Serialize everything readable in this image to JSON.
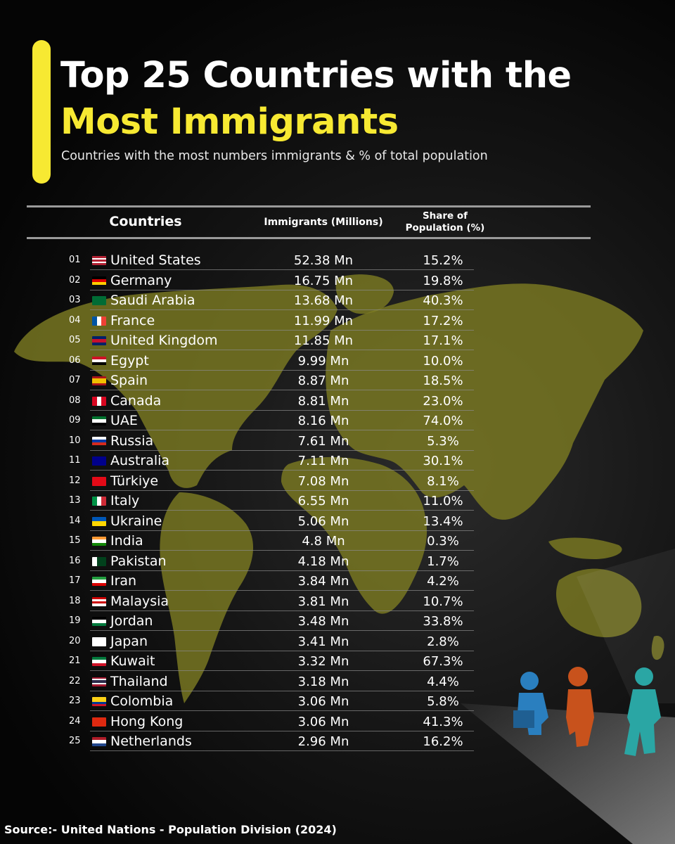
{
  "header": {
    "title_line1": "Top 25 Countries with the",
    "title_line2": "Most Immigrants",
    "subtitle": "Countries with the most numbers immigrants & % of total population"
  },
  "colors": {
    "accent": "#f7e932",
    "background": "#000000",
    "map": "#7b7a22"
  },
  "chart_data": {
    "type": "table",
    "columns": [
      "Countries",
      "Immigrants (Millions)",
      "Share of Population (%)"
    ],
    "rows": [
      {
        "rank": "01",
        "country": "United States",
        "immigrants": "52.38 Mn",
        "share": "15.2%",
        "flag": [
          "#b22234",
          "#ffffff",
          "#b22234",
          "#ffffff",
          "#b22234"
        ]
      },
      {
        "rank": "02",
        "country": "Germany",
        "immigrants": "16.75 Mn",
        "share": "19.8%",
        "flag": [
          "#000000",
          "#dd0000",
          "#ffce00"
        ]
      },
      {
        "rank": "03",
        "country": "Saudi Arabia",
        "immigrants": "13.68 Mn",
        "share": "40.3%",
        "flag": [
          "#006c35"
        ]
      },
      {
        "rank": "04",
        "country": "France",
        "immigrants": "11.99 Mn",
        "share": "17.2%",
        "flag": [
          "#0055a4",
          "#ffffff",
          "#ef4135"
        ],
        "vertical": true
      },
      {
        "rank": "05",
        "country": "United Kingdom",
        "immigrants": "11.85 Mn",
        "share": "17.1%",
        "flag": [
          "#012169",
          "#c8102e",
          "#012169"
        ]
      },
      {
        "rank": "06",
        "country": "Egypt",
        "immigrants": "9.99 Mn",
        "share": "10.0%",
        "flag": [
          "#ce1126",
          "#ffffff",
          "#000000"
        ]
      },
      {
        "rank": "07",
        "country": "Spain",
        "immigrants": "8.87 Mn",
        "share": "18.5%",
        "flag": [
          "#aa151b",
          "#f1bf00",
          "#f1bf00",
          "#aa151b"
        ]
      },
      {
        "rank": "08",
        "country": "Canada",
        "immigrants": "8.81 Mn",
        "share": "23.0%",
        "flag": [
          "#d80621",
          "#ffffff",
          "#d80621"
        ],
        "vertical": true
      },
      {
        "rank": "09",
        "country": "UAE",
        "immigrants": "8.16 Mn",
        "share": "74.0%",
        "flag": [
          "#00732f",
          "#ffffff",
          "#000000"
        ]
      },
      {
        "rank": "10",
        "country": "Russia",
        "immigrants": "7.61 Mn",
        "share": "5.3%",
        "flag": [
          "#ffffff",
          "#0039a6",
          "#d52b1e"
        ]
      },
      {
        "rank": "11",
        "country": "Australia",
        "immigrants": "7.11 Mn",
        "share": "30.1%",
        "flag": [
          "#00008b"
        ]
      },
      {
        "rank": "12",
        "country": "Türkiye",
        "immigrants": "7.08 Mn",
        "share": "8.1%",
        "flag": [
          "#e30a17"
        ]
      },
      {
        "rank": "13",
        "country": "Italy",
        "immigrants": "6.55 Mn",
        "share": "11.0%",
        "flag": [
          "#009246",
          "#ffffff",
          "#ce2b37"
        ],
        "vertical": true
      },
      {
        "rank": "14",
        "country": "Ukraine",
        "immigrants": "5.06 Mn",
        "share": "13.4%",
        "flag": [
          "#0057b7",
          "#ffd700"
        ]
      },
      {
        "rank": "15",
        "country": "India",
        "immigrants": "4.8 Mn",
        "share": "0.3%",
        "flag": [
          "#ff9933",
          "#ffffff",
          "#138808"
        ]
      },
      {
        "rank": "16",
        "country": "Pakistan",
        "immigrants": "4.18 Mn",
        "share": "1.7%",
        "flag": [
          "#ffffff",
          "#01411c",
          "#01411c"
        ],
        "vertical": true
      },
      {
        "rank": "17",
        "country": "Iran",
        "immigrants": "3.84 Mn",
        "share": "4.2%",
        "flag": [
          "#239f40",
          "#ffffff",
          "#da0000"
        ]
      },
      {
        "rank": "18",
        "country": "Malaysia",
        "immigrants": "3.81 Mn",
        "share": "10.7%",
        "flag": [
          "#cc0001",
          "#ffffff",
          "#cc0001",
          "#ffffff"
        ]
      },
      {
        "rank": "19",
        "country": "Jordan",
        "immigrants": "3.48 Mn",
        "share": "33.8%",
        "flag": [
          "#000000",
          "#ffffff",
          "#007a3d"
        ]
      },
      {
        "rank": "20",
        "country": "Japan",
        "immigrants": "3.41 Mn",
        "share": "2.8%",
        "flag": [
          "#ffffff"
        ]
      },
      {
        "rank": "21",
        "country": "Kuwait",
        "immigrants": "3.32 Mn",
        "share": "67.3%",
        "flag": [
          "#007a3d",
          "#ffffff",
          "#ce1126"
        ]
      },
      {
        "rank": "22",
        "country": "Thailand",
        "immigrants": "3.18 Mn",
        "share": "4.4%",
        "flag": [
          "#a51931",
          "#f4f5f8",
          "#2d2a4a",
          "#2d2a4a",
          "#f4f5f8",
          "#a51931"
        ]
      },
      {
        "rank": "23",
        "country": "Colombia",
        "immigrants": "3.06 Mn",
        "share": "5.8%",
        "flag": [
          "#fcd116",
          "#fcd116",
          "#003893",
          "#ce1126"
        ]
      },
      {
        "rank": "24",
        "country": "Hong Kong",
        "immigrants": "3.06 Mn",
        "share": "41.3%",
        "flag": [
          "#de2910"
        ]
      },
      {
        "rank": "25",
        "country": "Netherlands",
        "immigrants": "2.96 Mn",
        "share": "16.2%",
        "flag": [
          "#ae1c28",
          "#ffffff",
          "#21468b"
        ]
      }
    ]
  },
  "footer": {
    "source": "Source:- United Nations - Population Division (2024)"
  }
}
